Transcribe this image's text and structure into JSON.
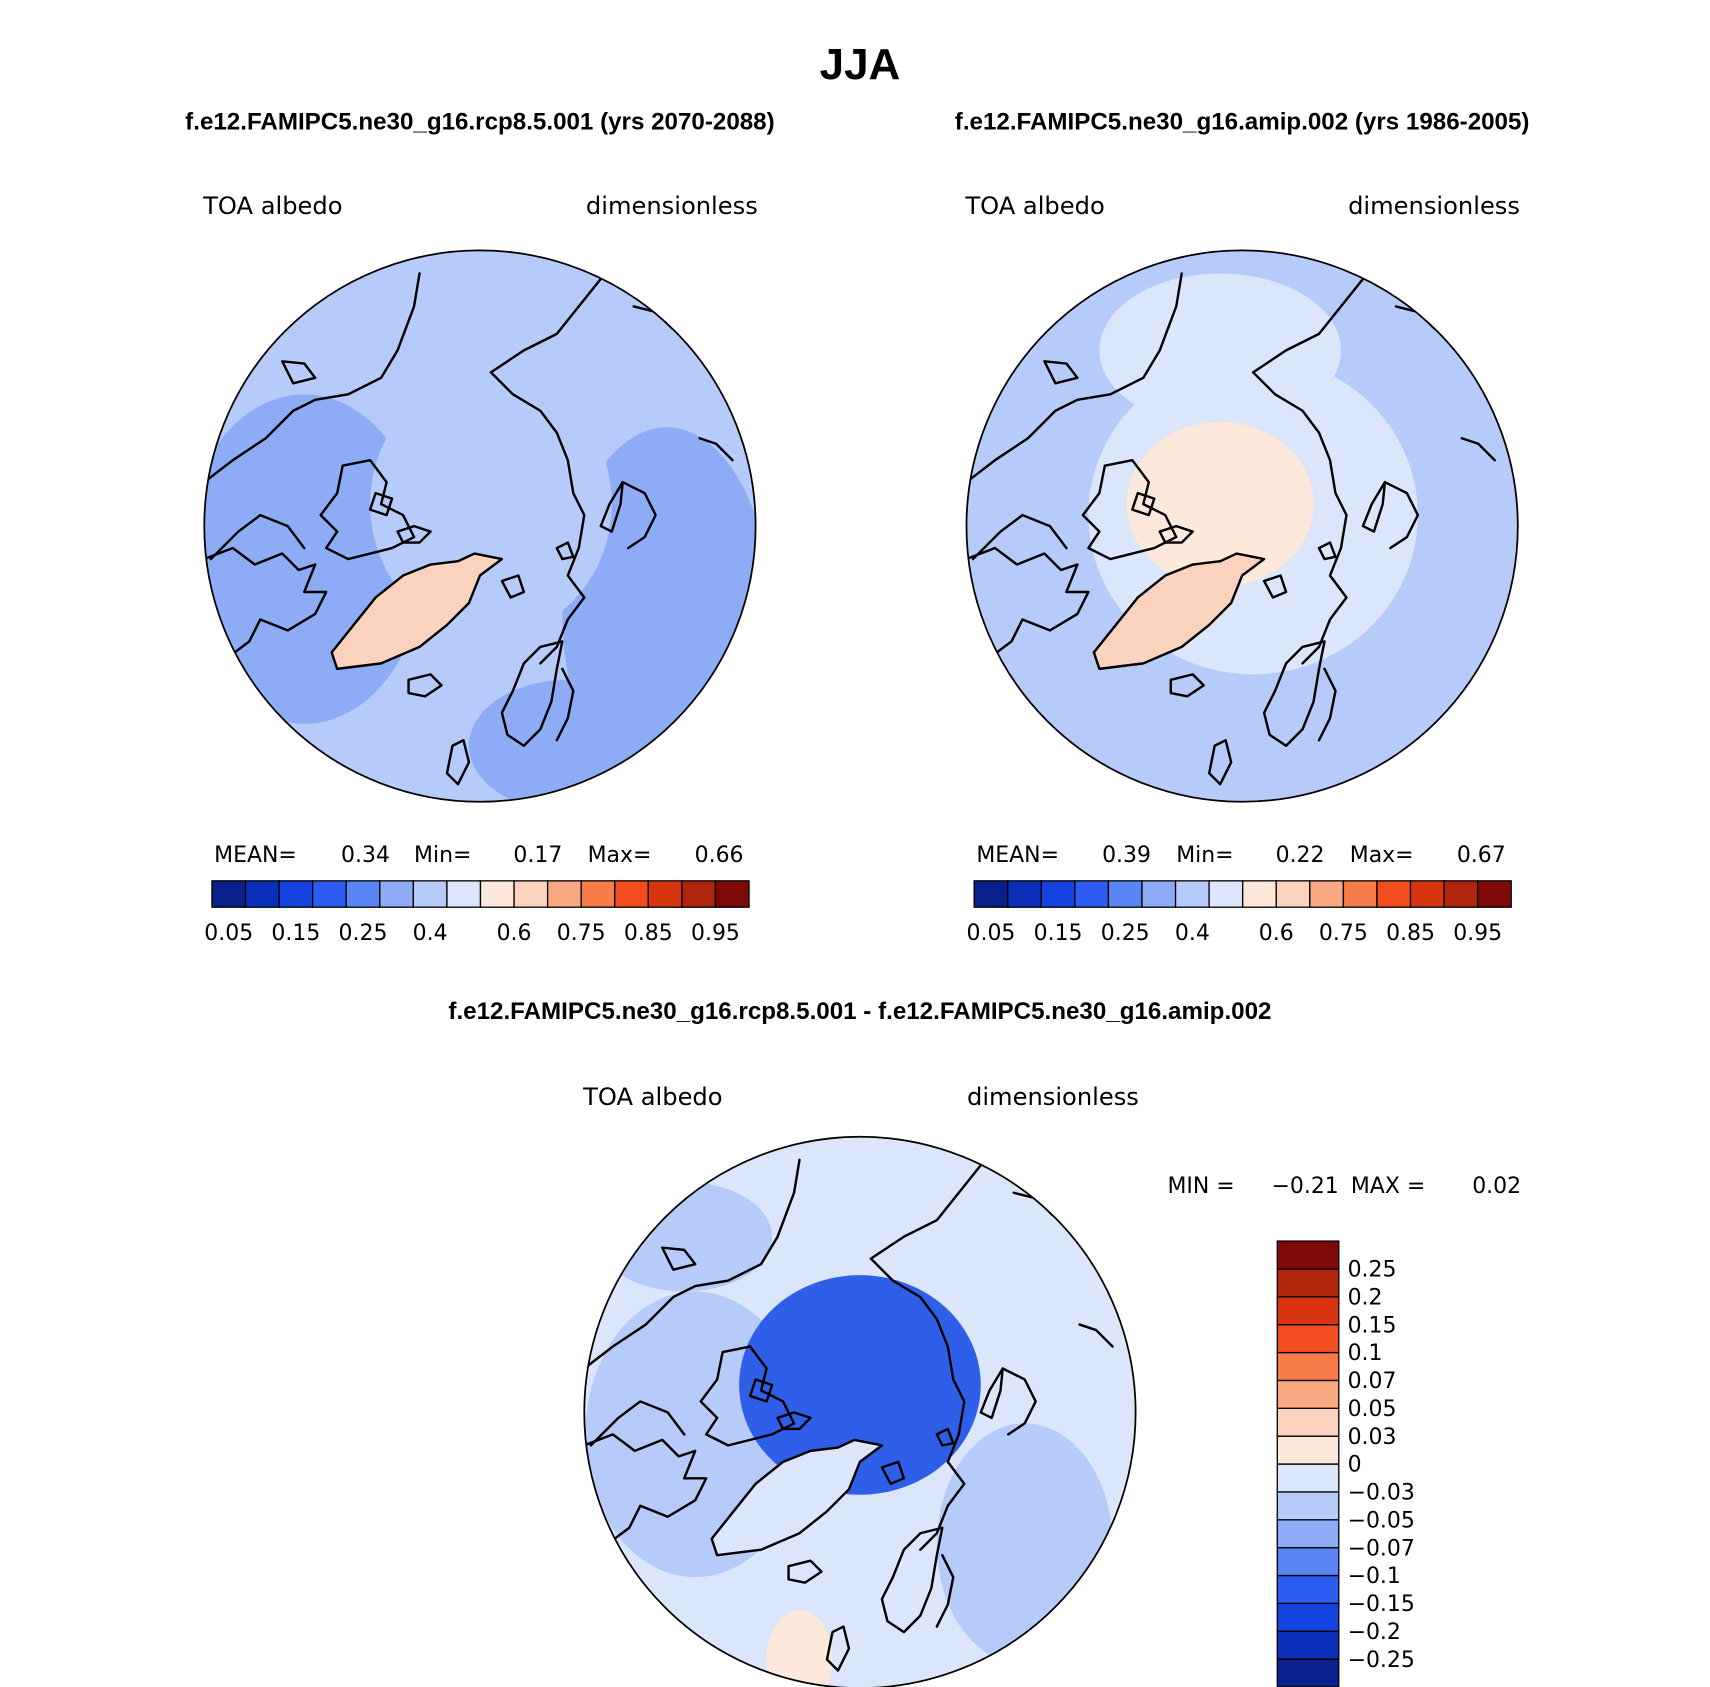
{
  "title": "JJA",
  "panels": [
    {
      "case": "f.e12.FAMIPC5.ne30_g16.rcp8.5.001 (yrs 2070-2088)",
      "variable": "TOA albedo",
      "units": "dimensionless",
      "stats": {
        "mean_label": "MEAN=",
        "mean": "0.34",
        "min_label": "Min=",
        "min": "0.17",
        "max_label": "Max=",
        "max": "0.66"
      },
      "fields": {
        "ocean": "#b6cbfa",
        "greenland": "#fbd2bd",
        "arctic": "#b6cbfa",
        "margins": "#8eacf6"
      }
    },
    {
      "case": "f.e12.FAMIPC5.ne30_g16.amip.002 (yrs 1986-2005)",
      "variable": "TOA albedo",
      "units": "dimensionless",
      "stats": {
        "mean_label": "MEAN=",
        "mean": "0.39",
        "min_label": "Min=",
        "min": "0.22",
        "max_label": "Max=",
        "max": "0.67"
      },
      "fields": {
        "ocean": "#b6cbfa",
        "greenland": "#fbd2bd",
        "arctic": "#fde9dc",
        "margins": "#dbe6fb"
      }
    },
    {
      "case": "f.e12.FAMIPC5.ne30_g16.rcp8.5.001 - f.e12.FAMIPC5.ne30_g16.amip.002",
      "variable": "TOA albedo",
      "units": "dimensionless",
      "stats": {
        "min_label": "MIN =",
        "min": "−0.21",
        "max_label": "MAX =",
        "max": "0.02"
      },
      "fields": {
        "ocean": "#dbe6fb",
        "greenland": "#dbe6fb",
        "arctic": "#2f5fe8",
        "margins": "#b6cbfa"
      }
    }
  ],
  "colorbar_horizontal": {
    "colors": [
      "#08208a",
      "#0a2fb8",
      "#1442de",
      "#2d5cf2",
      "#5a85f4",
      "#8eacf6",
      "#b6cbfa",
      "#dbe6fb",
      "#fde9dc",
      "#fbd2bd",
      "#f9a981",
      "#f77c4a",
      "#f24d1f",
      "#d8340f",
      "#b0240b",
      "#7d0a07"
    ],
    "labels": [
      "0.05",
      "0.15",
      "0.25",
      "0.4",
      "0.6",
      "0.75",
      "0.85",
      "0.95"
    ]
  },
  "colorbar_vertical": {
    "colors": [
      "#08208a",
      "#0a2fb8",
      "#1442de",
      "#2d5cf2",
      "#5a85f4",
      "#8eacf6",
      "#b6cbfa",
      "#dbe6fb",
      "#fde9dc",
      "#fbd2bd",
      "#f9a981",
      "#f77c4a",
      "#f24d1f",
      "#d8340f",
      "#b0240b",
      "#7d0a07"
    ],
    "labels": [
      "−0.25",
      "−0.2",
      "−0.15",
      "−0.1",
      "−0.07",
      "−0.05",
      "−0.03",
      "0",
      "0.03",
      "0.05",
      "0.07",
      "0.1",
      "0.15",
      "0.2",
      "0.25"
    ]
  }
}
